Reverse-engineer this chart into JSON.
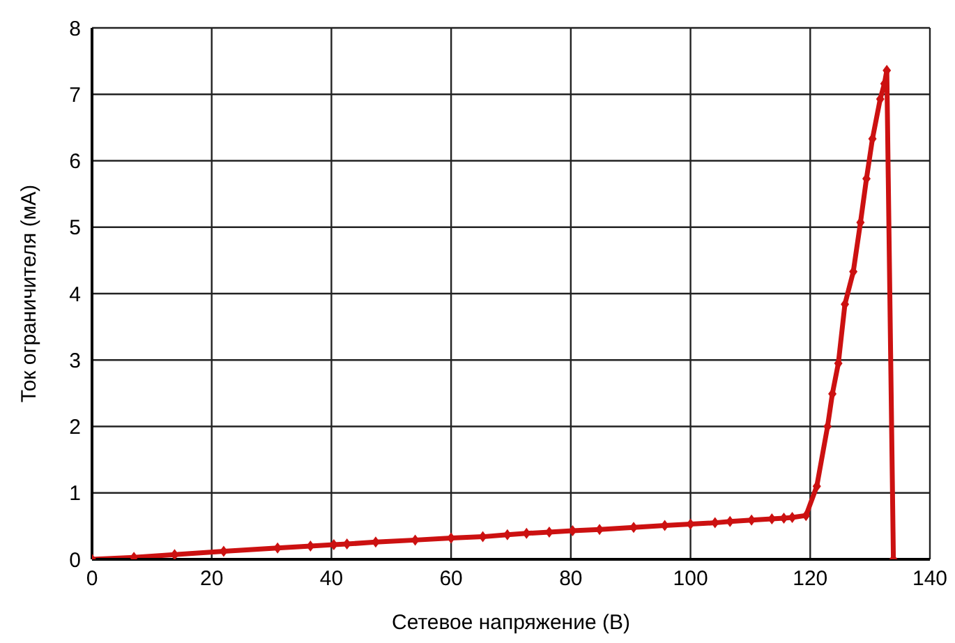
{
  "chart_data": {
    "type": "line",
    "xlabel": "Сетевое напряжение (В)",
    "ylabel": "Ток ограничителя (мА)",
    "xlim": [
      0,
      140
    ],
    "ylim": [
      0,
      8
    ],
    "xticks": [
      0,
      20,
      40,
      60,
      80,
      100,
      120,
      140
    ],
    "yticks": [
      0,
      1,
      2,
      3,
      4,
      5,
      6,
      7,
      8
    ],
    "grid": true,
    "marker": "diamond",
    "line_style": "solid",
    "series": [
      {
        "color": "#cc1111",
        "x": [
          0,
          7,
          13.8,
          22,
          31,
          36.5,
          40.4,
          42.6,
          47.4,
          54,
          60,
          65.3,
          69.4,
          72.6,
          76.4,
          80.3,
          84.8,
          90.5,
          95.7,
          100,
          104.1,
          106.6,
          110.2,
          113.6,
          115.6,
          117,
          119.3,
          121.1,
          122.9,
          123.7,
          124.7,
          125.8,
          127.2,
          128.4,
          129.4,
          130.4,
          131.7,
          132.4,
          132.8,
          133.9
        ],
        "values": [
          0,
          0.03,
          0.07,
          0.12,
          0.17,
          0.2,
          0.22,
          0.23,
          0.26,
          0.29,
          0.32,
          0.34,
          0.37,
          0.39,
          0.41,
          0.43,
          0.45,
          0.48,
          0.51,
          0.53,
          0.55,
          0.57,
          0.59,
          0.61,
          0.62,
          0.63,
          0.66,
          1.1,
          2.0,
          2.49,
          2.95,
          3.84,
          4.33,
          5.07,
          5.73,
          6.33,
          6.93,
          7.16,
          7.36,
          0
        ]
      }
    ]
  }
}
